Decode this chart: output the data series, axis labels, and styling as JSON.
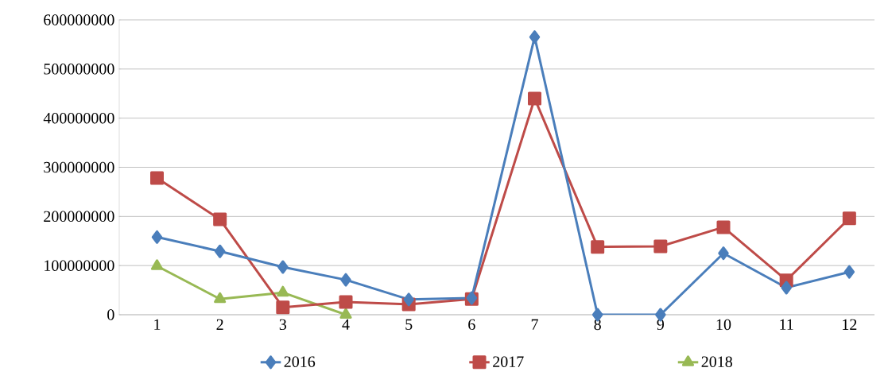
{
  "chart_data": {
    "type": "line",
    "categories": [
      "1",
      "2",
      "3",
      "4",
      "5",
      "6",
      "7",
      "8",
      "9",
      "10",
      "11",
      "12"
    ],
    "series": [
      {
        "name": "2016",
        "color": "#4a7ebb",
        "marker": "diamond",
        "values": [
          158000000,
          129000000,
          97000000,
          71000000,
          31000000,
          34000000,
          565000000,
          0,
          0,
          125000000,
          55000000,
          87000000
        ]
      },
      {
        "name": "2017",
        "color": "#be4b48",
        "marker": "square",
        "values": [
          278000000,
          194000000,
          15000000,
          26000000,
          21000000,
          32000000,
          440000000,
          138000000,
          139000000,
          178000000,
          70000000,
          196000000
        ]
      },
      {
        "name": "2018",
        "color": "#98b954",
        "marker": "triangle",
        "values": [
          99000000,
          32000000,
          45000000,
          0,
          null,
          null,
          null,
          null,
          null,
          null,
          null,
          null
        ]
      }
    ],
    "ylim": [
      0,
      600000000
    ],
    "yticks": [
      0,
      100000000,
      200000000,
      300000000,
      400000000,
      500000000,
      600000000
    ],
    "grid": "y",
    "legend": "bottom",
    "line_style": "solid"
  }
}
